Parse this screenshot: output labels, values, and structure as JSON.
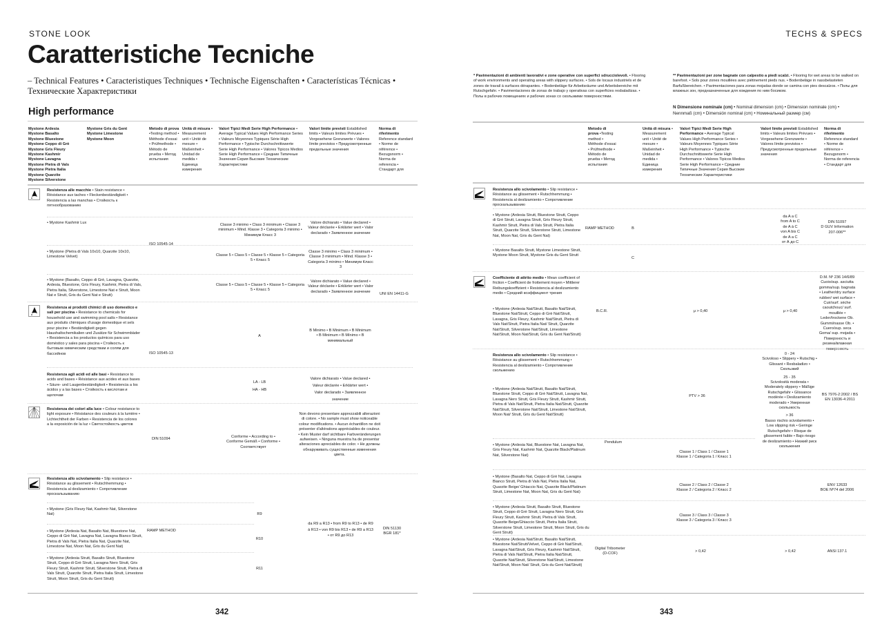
{
  "left": {
    "kicker": "STONE LOOK",
    "title": "Caratteristiche Tecniche",
    "subtitle": "– Technical Features • Caracteristiques Techniques • Technische Eigenschaften • Características Técnicas • Технические Характеристики",
    "section": "High performance",
    "products_col1": "Mystone Ardesia\nMystone Basalto\nMystone Bluestone\nMystone Ceppo di Grè\nMystone Gris Fleury\nMystone Kashmir\nMystone Lavagna\nMystone Pietra di Vals\nMystone Pietra Italia\nMystone Quarzite\nMystone Silverstone",
    "products_col2": "Mystone Gris du Gent\nMystone Limestone\nMystone Moon",
    "headers": {
      "method_title": "Metodo di prova",
      "method": "•Testing method • Méthode d'essai • Prüfmethode • Método de prueba • Метод испытания",
      "unit_title": "Unità di misura •",
      "unit": "Measurement unit • Unité de mesure • Maßeinheit • Unidad de medida • Единица измерения",
      "values_title": "Valori Tipici Medi Serie High Performance",
      "values": "• Average Typical Values High Performance Series • Valeurs Moyennes Typiques Série High Performance • Typische Durchschnittswerte Serie High Performance • Valores Tipicos Medios Serie High Performance • Средние Типичные Значения Серия Высокие Технические Характеристики",
      "limits_title": "Valori limite previsti",
      "limits": "Established limits • Valeurs limites Prévues • Vorgesehene Grenzwerte • Valores límite previstos • Предусмотренные предельные значения",
      "norm_title": "Norma di riferimento",
      "norm": "Reference standard • Norme de référence • Bezugsnorm • Norma de referencia • Стандарт для"
    },
    "stain": {
      "title": "Resistenza alle macchie",
      "desc": " • Stain resistance • Résistance aux taches • Fleckenbeständigkeit • Resistencia a las manchas • Стойкость к пятнообразованию",
      "method": "ISO 10545-14",
      "norm": "UNI EN 14411-G",
      "rows": [
        {
          "products": "• Mystone Kashmir Lux",
          "value": "Classe 3 minimo • Class 3 minimum • Classe 3 minimum • Mind. Klasse 3 • Categoria 3 minimo • Минимум Класс 3",
          "limit": "Valore dichiarato • Value declared • Valeur déclarée • Erklärter wert • Valor declarado • Заявленное значение"
        },
        {
          "products": "• Mystone (Pietra di Vals 10x10, Quarzite 10x10, Limestone Velvet)",
          "value": "Classe 5 • Class 5 • Classe 5 • Klasse 5 • Categoria 5 • Класс 5",
          "limit": "Classe 3 minimo • Class 3 minimum • Classe 3 minimum • Mind. Klasse 3 • Categoria 3 minimo • Минимум Класс 3"
        },
        {
          "products": "• Mystone (Basalto, Ceppo di Grè, Lavagna, Quarzite, Ardesia, Bluestone, Gris Fleury, Kashmir, Pietra di Vals, Pietra Italia, Silverstone, Limestone Nat e Strutt, Moon Nat e Strutt, Gris du Gent Nat e Strutt)",
          "value": "Classe 5 • Class 5 • Classe 5 • Klasse 5 • Categoria 5 • Класс 5",
          "limit": "Valore dichiarato • Value declared • Valeur déclarée • Erklärter wert • Valor declarado • Заявленное значение"
        }
      ]
    },
    "chem": {
      "title": "Resistenza ai prodotti chimici di uso domestico e sali per piscina",
      "desc": " • Resistance to chemicals for household use and swimming pool salts • Resistance aux produits chimiques d'usage domestique et sels pour piscine • Beständigkeit gegen Haushaltschemikalien und Zusätze für Schwimmbäder • Resistencia a los productos químicos para uso doméstico y sales para piscina • Стойкость к бытовым химическим средствам и солям для бассейнов",
      "method": "ISO 10545-13",
      "value": "A",
      "limit": "B Minimo • B Minimum • B Minimum • B Minimum • B Mínimo • B минимальный"
    },
    "acid": {
      "title": "Resistenza agli acidi ed alle basi",
      "desc": " • Resistance to acids and bases • Résistance aux acides et aux bases • Säure- und Laugenbeständigkeit • Resistencia a los ácidos y a las bases • Стойкость к кислотам и щелочам",
      "value1": "LA - LB",
      "value2": "HA - HB",
      "limit": "Valore dichiarato • Value declared • Valeur déclarée • Erklärter wert • Valor declarado • Заявленное значение"
    },
    "colour": {
      "title": "Resistenza dei colori alla luce",
      "desc": " • Colour resistance to light exposure • Résistance des couleurs à la lumière • Lichtechtheit der Farben • Resistencia de los colores a la exposición de la luz • Светостойкость цветов",
      "method": "DIN 51094",
      "value": "Conforme • According to • Conforme Gemäß • Conforme • Соответствует",
      "limit": "Non devono presentare apprezzabili alterazioni di colore. • No sample must show noticeable colour modifications. • Aucun échantillon ne doit présenter d'altérations appréciables de couleur. • Kein Muster darf sichtbare Farbveränderungen aufweisen. • Ninguna muestra ha de presentar alteraciones apreciables de color. • Не должны обнаруживать существенные изменения цвета."
    },
    "slip": {
      "title": "Resistenza allo scivolamento",
      "desc": " • Slip resistance • Résistance au glissement • Rutschhemmung • Resistencia al deslizamiento • Сопротивление проскальзыванию",
      "method": "RAMP METHOD",
      "limit": "da R9 a R13 • from R9 to R13 • de R9 à R13 • von R9 bis R13 • de R9 a R13 • от R9 до R13",
      "norm": "DIN 51130 BGR 181*",
      "rows": [
        {
          "products": "• Mystone (Gris Fleury Nat, Kashmir Nat, Silverstone Nat)",
          "value": "R9"
        },
        {
          "products": "• Mystone (Ardesia Nat, Basalto Nat, Bluestone Nat, Ceppo di Grè Nat, Lavagna Nat, Lavagna Bianco Strutt, Pietra di Vals Nat, Pietra Italia Nat, Quarzite Nat, Limestone Nat, Moon Nat, Gris du Gent Nat)",
          "value": "R10"
        },
        {
          "products": "• Mystone (Ardesia Strutt, Basalto Strutt, Bluestone Strutt, Ceppo di Grè Strutt, Lavagna Nero Strutt, Gris Fleury Strutt, Kashmir Strutt, Silverstone Strutt, Pietra di Vals Strutt, Quarzite Strutt, Pietra Italia Strutt, Limestone Strutt, Moon Strutt, Gris du Gent Strutt)",
          "value": "R11"
        }
      ]
    },
    "page_number": "342"
  },
  "right": {
    "kicker": "TECHS & SPECS",
    "note1_title": "* Pavimentazioni di ambienti lavorativi e zone operative con superfici sdrucciolevoli.",
    "note1": " • Flooring of work environments and operating areas with slippery surfaces. • Sols de locaux industriels et de zones de travail à surfaces dérapantes. • Bodenbeläge für Arbeitsräume und Arbeitsbereiche mit Rutschgefahr. • Pavimentaciones de zonas de trabajo y operativas con superficies resbaladizas. • Полы в рабочих помещениях и рабочих зонах со скользкими поверхностями.",
    "note2_title": "** Pavimentazioni per zone bagnate con calpestio a piedi scalzi.",
    "note2": " • Flooring for wet areas to be walked on barefoot. • Sols pour zones mouillées avec piétinement pieds nus. • Bodenbeläge in nassbelasteten Barfußbereichen. • Pavimentaciones para zonas mojadas donde se camina con pies descalzos. • Полы для влажных зон, предназначенные для хождения по ним босиком.",
    "dim_title": "N  Dimensione nominale (cm)",
    "dim": " • Nominal dimension (cm) • Dimension nominale (cm) • Nennmaß (cm) • Dimensión nominal (cm) • Номинальный размер (см)",
    "headers": {
      "method_title": "Metodo di prova",
      "method": " •Testing method • Méthode d'essai • Prüfmethode • Método de prueba • Метод испытания",
      "unit_title": "Unità di misura",
      "unit": " • Measurement unit • Unité de mesure • Maßeinheit • Unidad de medida • Единица измерения",
      "values_title": "Valori Tipici Medi Serie High Performance",
      "values": " • Average Typical Values High Performance Series • Valeurs Moyennes Typiques Série High Performance • Typische Durchschnittswerte Serie High Performance • Valores Tipicos Medios Serie High Performance • Средние Типичные Значения Серия Высокие Технические Характеристики",
      "limits_title": "Valori limite previsti",
      "limits": "Established limits • Valeurs limites Prévues • Vorgesehene Grenzwerte • Valores límite previstos • Предусмотренные предельные значения",
      "norm_title": "Norma di riferimento",
      "norm": "Reference standard • Norme de référence • Bezugsnorm • Norma de referencia • Стандарт для"
    },
    "slipA": {
      "title": "Resistenza allo scivolamento",
      "desc": " • Slip resistance • Résistance au glissement • Rutschhemmung • Resistencia al deslizamiento • Сопротивление проскальзыванию",
      "method": "RAMP METHOD",
      "limit": "da A a C\nfrom A to C\nde A à C\nvon A bis C\nde A a C\nот А до С",
      "norm": "DIN 51097\nD GUV Information 207-006**",
      "rows": [
        {
          "products": "• Mystone (Ardesia Strutt, Bluestone Strutt, Ceppo di Grè Strutt, Lavagna Strutt, Gris Fleury Strutt, Kashmir Strutt, Pietra di Vals Strutt, Pietra Italia Strutt, Quarzite Strutt, Silverstone Strutt, Limestone Nat, Moon Nat, Gris du Gent Nat)",
          "value": "B"
        },
        {
          "products": "• Mystone Basalto Strutt, Mystone Limestone Strutt, Mystone Moon Strutt, Mystone Gris du Gent Strutt",
          "value": "C"
        }
      ]
    },
    "friction": {
      "title": "Coefficiente di attrito medio",
      "desc": " • Mean coefficient of friction • Coefficient de frottement moyen • Mittlerer Reibungskoeffizient • Resistencia al deslizamiento medio • Средний коэффициент трения",
      "products": "• Mystone (Ardesia Nat/Strutt, Basalto Nat/Strutt, Bluestone Nat/Strutt, Ceppo di Grè Nat/Strutt, Lavagna, Gris Fleury, Kashmir Nat/Strutt, Pietra di Vals Nat/Strutt, Pietra Italia Nat/ Strutt, Quarzite Nat/Strutt, Silverstone Nat/Strutt, Limestone Nat/Strutt, Moon Nat/Strutt, Gris du Gent Nat/Strutt)",
      "method": "B.C.R.",
      "value": "μ > 0,40",
      "limit": "μ > 0,40",
      "norm": "D.M. Nº 236 14/6/89 Cuoio/sup. asciutta gomma/sup. bagnata • Leather/dry surface rubber/ wet surface • Cuir/surf. sèche caoutchouc/ surf. mouillée • Leder/trockene Ob. Gummi/nasse Ob. • Cuero/sup. seca Goma/ sup. mojada • Поверхность и резина/влажная поверхность"
    },
    "pendulum": {
      "title": "Resistenza allo scivolamento",
      "desc": " • Slip resistance • Résistance au glissement • Rutschhemmung • Resistencia al deslizamiento • Сопротивление скольжению",
      "method": "Pendulum",
      "products": "• Mystone (Ardesia Nat/Strutt, Basalto Nat/Strutt, Bluestone Strutt, Ceppo di Grè Nat/Strutt, Lavagna Nat, Lavagna Nero Strutt, Gris Fleury Strutt, Kashmir Strutt, Pietra di Vals Nat/Strutt, Pietra Italia Nat/Strutt, Quarzite Nat/Strutt, Silverstone Nat/Strutt, Limestone Nat/Strutt, Moon Nat/ Strutt, Gris du Gent Nat/Strutt)",
      "value": "PTV > 36",
      "limit1": "0 - 24\nScivoloso • Slippery • Rutschig • Glissant • Resbaladizo • Скользкий",
      "limit2": "25 - 35\nScivolosità moderata • Moderately slippery • Mäßige Rutschgefahr • Glissance modérée • Deslizamiento moderado • Умеренная скользкость",
      "limit3": "> 36\nBasso rischio scivolamento • Low slipping risk • Geringe Rutschgefahr • Risque de glissement faible • Bajo riesgo de deslizamiento • Низкий риск скольжения",
      "norm": "BS 7976-2:2002 / BS EN 13036-4:2011",
      "rows": [
        {
          "products": "• Mystone (Ardesia Nat, Bluestone Nat, Lavagna Nat, Gris Fleury Nat, Kashmir Nat, Quarzite Black/Platinum Nat, Silverstone Nat)",
          "value": "Classe 1 / Class 1 / Classe 1\nKlasse 1 / Categoria 1 / Класс 1"
        },
        {
          "products": "• Mystone (Basalto Nat, Ceppo di Grè Nat, Lavagna Bianco Strutt, Pietra di Vals Nat, Pietra Italia Nat, Quarzite Beige/ Ghiaccio Nat, Quarzite Black/Platinum Strutt, Limestone Nat, Moon Nat, Gris du Gent Nat)",
          "value": "Classe 2 / Class 2 / Classe 2\nKlasse 2 / Categoria 2 / Класс 2"
        },
        {
          "products": "• Mystone (Ardesia Strutt, Basalto Strutt, Bluestone Strutt, Ceppo di Grè Strutt, Lavagna Nero Strutt, Gris Fleury Strutt, Kashmir Strutt, Pietra di Vals Strutt, Quarzite Beige/Ghiaccio Strutt, Pietra Italia Strutt, Silverstone Strutt, Limestone Strutt, Moon Strutt, Gris du Gent Strutt)",
          "value": "Classe 3 / Class 3 / Classe 3\nKlasse 3 / Categoria 3 / Класс 3"
        }
      ],
      "classes_norm": "ENV 12633\nBOE Nº74 del 2006"
    },
    "tribo": {
      "products": "• Mystone (Ardesia Nat/Strutt, Basalto Nat/Strutt, Bluestone Nat/Strutt/Velvet, Ceppo di Grè Nat/Strutt, Lavagna Nat/Strutt, Gris Fleury, Kashmir Nat/Strutt, Pietra di Vals Nat/Strutt, Pietra Italia Nat/Strutt, Quarzite Nat/Strutt, Silverstone Nat/Strutt, Limestone Nat/Strutt, Moon Nat/ Strutt, Gris du Gent Nat/Strutt)",
      "method": "Digital Tribometer\n(D-COF)",
      "value": "> 0,42",
      "limit": "> 0,42",
      "norm": "ANSI 137.1"
    },
    "page_number": "343"
  },
  "icons": {
    "stain": "stain-drop-icon",
    "chemical": "chemical-drop-icon",
    "light": "sun-rays-icon",
    "slip": "slipping-foot-icon"
  }
}
